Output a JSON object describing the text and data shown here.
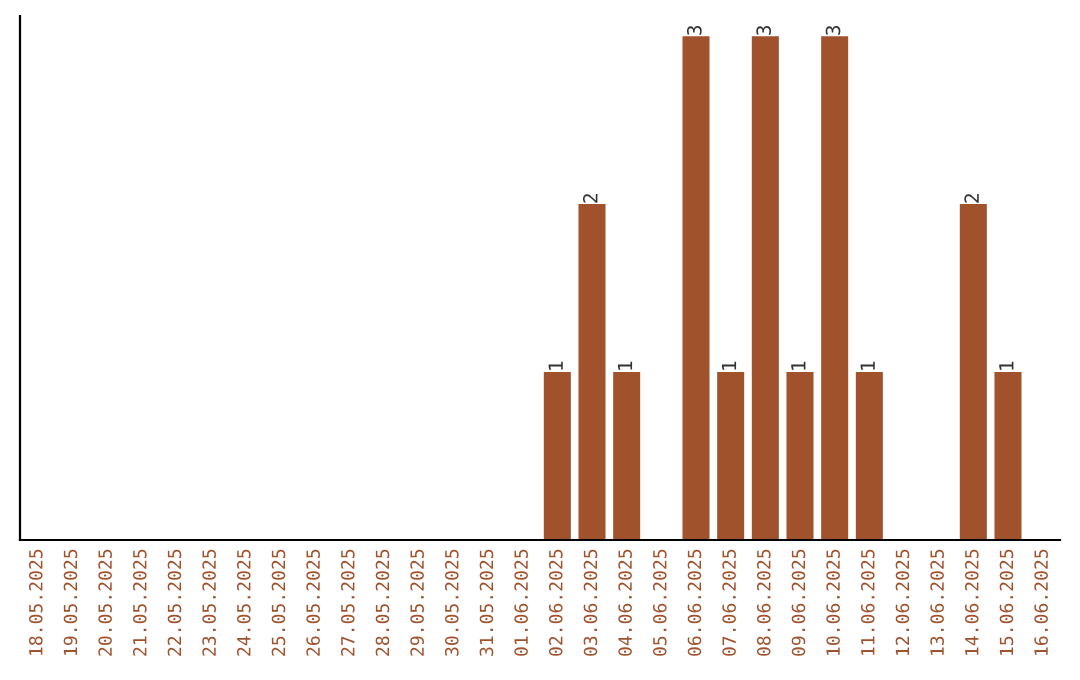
{
  "chart_data": {
    "type": "bar",
    "categories": [
      "18.05.2025",
      "19.05.2025",
      "20.05.2025",
      "21.05.2025",
      "22.05.2025",
      "23.05.2025",
      "24.05.2025",
      "25.05.2025",
      "26.05.2025",
      "27.05.2025",
      "28.05.2025",
      "29.05.2025",
      "30.05.2025",
      "31.05.2025",
      "01.06.2025",
      "02.06.2025",
      "03.06.2025",
      "04.06.2025",
      "05.06.2025",
      "06.06.2025",
      "07.06.2025",
      "08.06.2025",
      "09.06.2025",
      "10.06.2025",
      "11.06.2025",
      "12.06.2025",
      "13.06.2025",
      "14.06.2025",
      "15.06.2025",
      "16.06.2025"
    ],
    "values": [
      null,
      null,
      null,
      null,
      null,
      null,
      null,
      null,
      null,
      null,
      null,
      null,
      null,
      null,
      null,
      1,
      2,
      1,
      null,
      3,
      1,
      3,
      1,
      3,
      1,
      null,
      null,
      2,
      1,
      null
    ],
    "data_labels": true,
    "color": "#a0522d",
    "grid": false,
    "legend": false
  }
}
